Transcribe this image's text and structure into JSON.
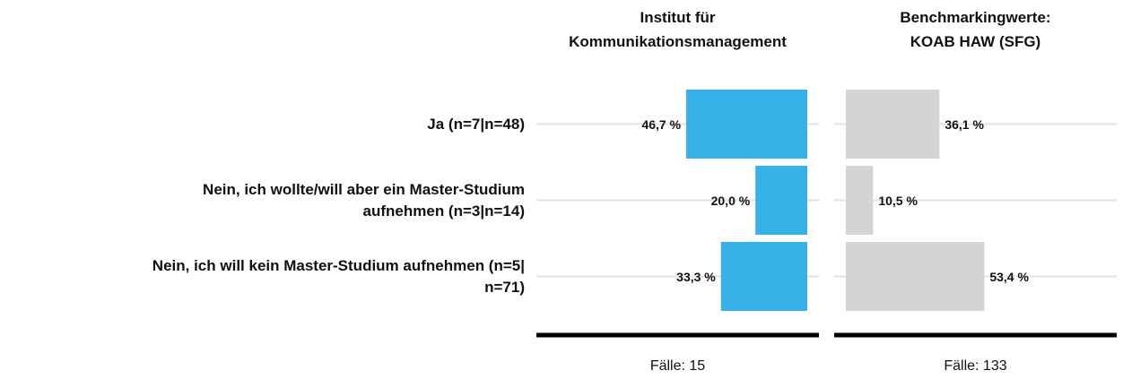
{
  "chart_data": [
    {
      "type": "bar",
      "orientation": "horizontal",
      "xreverse": true,
      "title": "Institut für\nKommunikationsmanagement",
      "categories": [
        "Ja (n=7|n=48)",
        "Nein, ich wollte/will aber ein Master-Studium\naufnehmen (n=3|n=14)",
        "Nein, ich will kein Master-Studium aufnehmen (n=5|\nn=71)"
      ],
      "values": [
        46.7,
        20.0,
        33.3
      ],
      "value_labels": [
        "46,7 %",
        "20,0 %",
        "33,3 %"
      ],
      "color": "#38b0e8",
      "xlim": [
        0,
        100
      ],
      "footnote": "Fälle: 15"
    },
    {
      "type": "bar",
      "orientation": "horizontal",
      "xreverse": false,
      "title": "Benchmarkingwerte:\nKOAB HAW (SFG)",
      "values": [
        36.1,
        10.5,
        53.4
      ],
      "value_labels": [
        "36,1 %",
        "10,5 %",
        "53,4 %"
      ],
      "color": "#d4d4d4",
      "xlim": [
        0,
        100
      ],
      "footnote": "Fälle: 133"
    }
  ]
}
